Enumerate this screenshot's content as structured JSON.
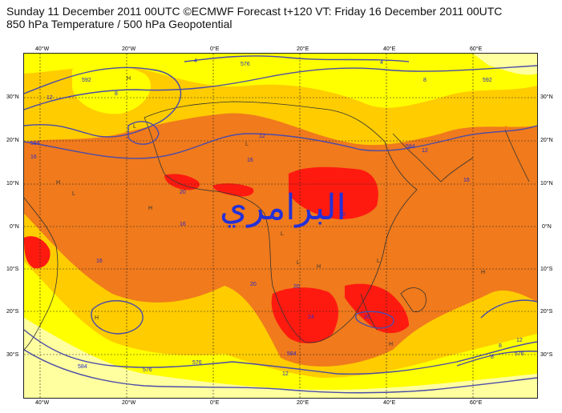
{
  "title": {
    "line1": "Sunday 11 December 2011 00UTC ©ECMWF Forecast t+120 VT: Friday 16 December 2011 00UTC",
    "line2": "850 hPa Temperature / 500 hPa Geopotential"
  },
  "axes": {
    "lon_labels": [
      "40°W",
      "20°W",
      "0°E",
      "20°E",
      "40°E",
      "60°E"
    ],
    "lat_labels": [
      "30°N",
      "20°N",
      "10°N",
      "0°N",
      "10°S",
      "20°S",
      "30°S"
    ]
  },
  "temperature_labels": [
    "12",
    "12",
    "12",
    "12",
    "12",
    "16",
    "16",
    "16",
    "16",
    "16",
    "20",
    "20",
    "20",
    "20",
    "20",
    "24",
    "8",
    "8",
    "8",
    "8",
    "4",
    "4"
  ],
  "geopotential_labels": [
    "576",
    "576",
    "576",
    "576",
    "584",
    "584",
    "584",
    "584",
    "592",
    "592"
  ],
  "pressure_centres": [
    "H",
    "H",
    "H",
    "H",
    "H",
    "H",
    "H",
    "L",
    "L",
    "L",
    "L",
    "L",
    "L"
  ],
  "watermark_text": "البرامري",
  "palette": {
    "t_lt8": "#ffffa0",
    "t_8_12": "#ffff00",
    "t_12_16": "#ffcc00",
    "t_16_20": "#f07a1c",
    "t_gt20": "#ff1a10",
    "contour": "#4b4ba8"
  }
}
